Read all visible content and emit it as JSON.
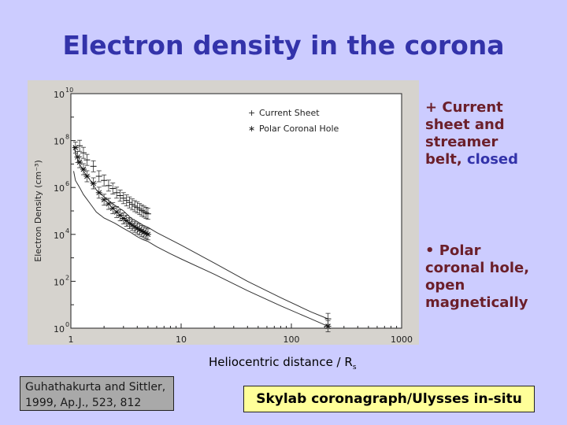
{
  "slide": {
    "title": "Electron density in the corona",
    "note1_bullet": "+ ",
    "note1_text": "Current sheet and streamer belt, ",
    "note1_accent": "closed",
    "note2_bullet": "• ",
    "note2_text": "Polar coronal hole, open magnetically",
    "xcaption": "Heliocentric distance / R",
    "xcaption_sub": "s",
    "citation_line1": "Guhathakurta and Sittler,",
    "citation_line2": "1999, Ap.J., 523, 812",
    "source_box": "Skylab coronagraph/Ulysses in-situ"
  },
  "colors": {
    "background": "#ccccff",
    "title": "#3333aa",
    "note_text": "#6b1f2a",
    "source_box": "#ffff99"
  },
  "chart_data": {
    "type": "line",
    "xscale": "log",
    "yscale": "log",
    "xlim": [
      1,
      1000
    ],
    "ylim": [
      1,
      10000000000.0
    ],
    "xticks": [
      "1",
      "10",
      "100",
      "1000"
    ],
    "yticks": [
      {
        "base": "10",
        "exp": "0"
      },
      {
        "base": "10",
        "exp": "2"
      },
      {
        "base": "10",
        "exp": "4"
      },
      {
        "base": "10",
        "exp": "6"
      },
      {
        "base": "10",
        "exp": "8"
      },
      {
        "base": "10",
        "exp": "10"
      }
    ],
    "ylabel": "Electron Density (cm⁻³)",
    "xlabel": "",
    "legend": [
      "Current Sheet",
      "Polar Coronal Hole"
    ],
    "legend_markers": [
      "+",
      "∗"
    ],
    "legend_position": "top-right",
    "series": [
      {
        "name": "Current Sheet",
        "marker": "+",
        "x": [
          1.06,
          1.1,
          1.2,
          1.3,
          1.5,
          1.7,
          2.0,
          2.4,
          3.0,
          3.5,
          4.0,
          4.5,
          5.0,
          6,
          8,
          10,
          20,
          40,
          80,
          150,
          215
        ],
        "y": [
          60000000.0,
          30000000.0,
          10000000.0,
          5000000.0,
          2000000.0,
          800000.0,
          400000.0,
          200000.0,
          100000.0,
          50000.0,
          35000.0,
          25000.0,
          20000.0,
          12000.0,
          6000.0,
          3500.0,
          600,
          100,
          20,
          5,
          2.5
        ],
        "points": [
          [
            1.2,
            60000000.0
          ],
          [
            1.3,
            30000000.0
          ],
          [
            1.4,
            15000000.0
          ],
          [
            1.6,
            8000000.0
          ],
          [
            1.8,
            3000000.0
          ],
          [
            2.0,
            2000000.0
          ],
          [
            2.2,
            1200000.0
          ],
          [
            2.4,
            900000.0
          ],
          [
            2.6,
            600000.0
          ],
          [
            2.8,
            450000.0
          ],
          [
            3.0,
            350000.0
          ],
          [
            3.2,
            280000.0
          ],
          [
            3.4,
            230000.0
          ],
          [
            3.6,
            190000.0
          ],
          [
            3.8,
            160000.0
          ],
          [
            4.0,
            140000.0
          ],
          [
            4.2,
            120000.0
          ],
          [
            4.4,
            105000.0
          ],
          [
            4.6,
            93000.0
          ],
          [
            4.8,
            83000.0
          ],
          [
            5.0,
            75000.0
          ],
          [
            215,
            2.5
          ]
        ]
      },
      {
        "name": "Polar Coronal Hole",
        "marker": "∗",
        "x": [
          1.06,
          1.1,
          1.2,
          1.3,
          1.5,
          1.7,
          2.0,
          2.5,
          3.0,
          3.5,
          4.0,
          4.5,
          5.0,
          6,
          8,
          10,
          20,
          40,
          80,
          150,
          215
        ],
        "y": [
          5000000.0,
          2000000.0,
          1000000.0,
          500000.0,
          200000.0,
          90000.0,
          50000.0,
          30000.0,
          18000.0,
          12000.0,
          8000.0,
          6000.0,
          5000.0,
          3000.0,
          1500.0,
          900,
          200,
          40,
          9,
          2.5,
          1.2
        ],
        "points": [
          [
            1.1,
            50000000.0
          ],
          [
            1.15,
            20000000.0
          ],
          [
            1.2,
            12000000.0
          ],
          [
            1.3,
            6000000.0
          ],
          [
            1.4,
            3000000.0
          ],
          [
            1.6,
            1500000.0
          ],
          [
            1.8,
            600000.0
          ],
          [
            2.0,
            300000.0
          ],
          [
            2.2,
            200000.0
          ],
          [
            2.4,
            130000.0
          ],
          [
            2.6,
            90000.0
          ],
          [
            2.8,
            65000.0
          ],
          [
            3.0,
            48000.0
          ],
          [
            3.2,
            38000.0
          ],
          [
            3.4,
            30000.0
          ],
          [
            3.6,
            25000.0
          ],
          [
            3.8,
            21000.0
          ],
          [
            4.0,
            18000.0
          ],
          [
            4.2,
            16000.0
          ],
          [
            4.4,
            14000.0
          ],
          [
            4.6,
            12500.0
          ],
          [
            4.8,
            11000.0
          ],
          [
            5.0,
            10000.0
          ],
          [
            215,
            1.2
          ]
        ]
      }
    ]
  }
}
